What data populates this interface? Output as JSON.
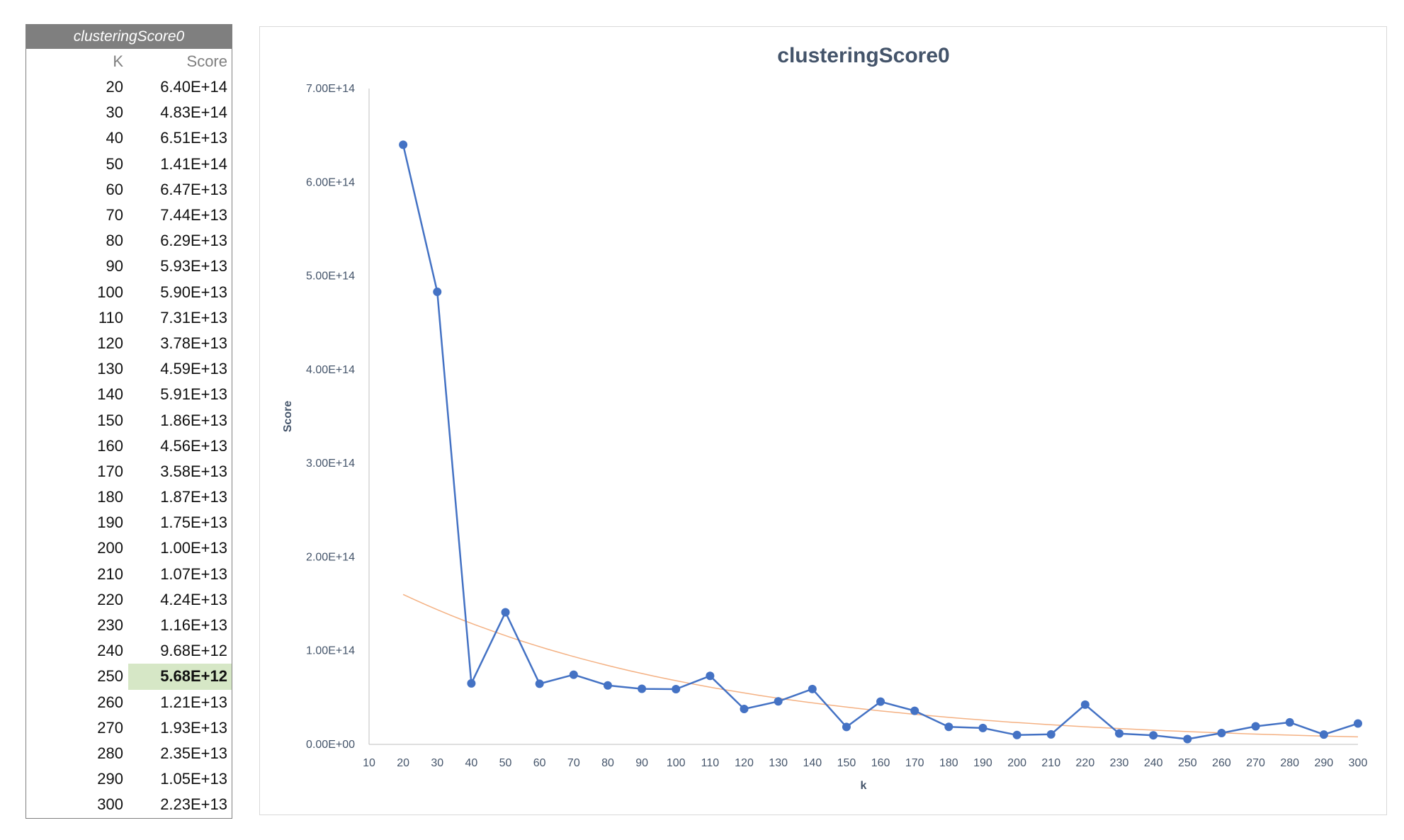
{
  "table": {
    "title": "clusteringScore0",
    "headers": [
      "K",
      "Score"
    ],
    "highlight_color": "#d6e7c6",
    "rows": [
      {
        "k": "20",
        "score": "6.40E+14"
      },
      {
        "k": "30",
        "score": "4.83E+14"
      },
      {
        "k": "40",
        "score": "6.51E+13"
      },
      {
        "k": "50",
        "score": "1.41E+14"
      },
      {
        "k": "60",
        "score": "6.47E+13"
      },
      {
        "k": "70",
        "score": "7.44E+13"
      },
      {
        "k": "80",
        "score": "6.29E+13"
      },
      {
        "k": "90",
        "score": "5.93E+13"
      },
      {
        "k": "100",
        "score": "5.90E+13"
      },
      {
        "k": "110",
        "score": "7.31E+13"
      },
      {
        "k": "120",
        "score": "3.78E+13"
      },
      {
        "k": "130",
        "score": "4.59E+13"
      },
      {
        "k": "140",
        "score": "5.91E+13"
      },
      {
        "k": "150",
        "score": "1.86E+13"
      },
      {
        "k": "160",
        "score": "4.56E+13"
      },
      {
        "k": "170",
        "score": "3.58E+13"
      },
      {
        "k": "180",
        "score": "1.87E+13"
      },
      {
        "k": "190",
        "score": "1.75E+13"
      },
      {
        "k": "200",
        "score": "1.00E+13"
      },
      {
        "k": "210",
        "score": "1.07E+13"
      },
      {
        "k": "220",
        "score": "4.24E+13"
      },
      {
        "k": "230",
        "score": "1.16E+13"
      },
      {
        "k": "240",
        "score": "9.68E+12"
      },
      {
        "k": "250",
        "score": "5.68E+12",
        "highlight": true
      },
      {
        "k": "260",
        "score": "1.21E+13"
      },
      {
        "k": "270",
        "score": "1.93E+13"
      },
      {
        "k": "280",
        "score": "2.35E+13"
      },
      {
        "k": "290",
        "score": "1.05E+13"
      },
      {
        "k": "300",
        "score": "2.23E+13"
      }
    ]
  },
  "chart_data": {
    "type": "line",
    "title": "clusteringScore0",
    "xlabel": "k",
    "ylabel": "Score",
    "xlim": [
      10,
      300
    ],
    "ylim": [
      0,
      700000000000000.0
    ],
    "x_ticks": [
      "10",
      "20",
      "30",
      "40",
      "50",
      "60",
      "70",
      "80",
      "90",
      "100",
      "110",
      "120",
      "130",
      "140",
      "150",
      "160",
      "170",
      "180",
      "190",
      "200",
      "210",
      "220",
      "230",
      "240",
      "250",
      "260",
      "270",
      "280",
      "290",
      "300"
    ],
    "y_ticks": [
      "0.00E+00",
      "1.00E+14",
      "2.00E+14",
      "3.00E+14",
      "4.00E+14",
      "5.00E+14",
      "6.00E+14",
      "7.00E+14"
    ],
    "grid": false,
    "legend": "none",
    "series": [
      {
        "color": "#4472c4",
        "x": [
          20,
          30,
          40,
          50,
          60,
          70,
          80,
          90,
          100,
          110,
          120,
          130,
          140,
          150,
          160,
          170,
          180,
          190,
          200,
          210,
          220,
          230,
          240,
          250,
          260,
          270,
          280,
          290,
          300
        ],
        "values": [
          640000000000000.0,
          483000000000000.0,
          65100000000000.0,
          141000000000000.0,
          64700000000000.0,
          74400000000000.0,
          62900000000000.0,
          59300000000000.0,
          59000000000000.0,
          73100000000000.0,
          37800000000000.0,
          45900000000000.0,
          59100000000000.0,
          18600000000000.0,
          45600000000000.0,
          35800000000000.0,
          18700000000000.0,
          17500000000000.0,
          10000000000000.0,
          10700000000000.0,
          42400000000000.0,
          11600000000000.0,
          9680000000000.0,
          5680000000000.0,
          12100000000000.0,
          19300000000000.0,
          23500000000000.0,
          10500000000000.0,
          22300000000000.0
        ]
      }
    ],
    "trendline": {
      "type": "exponential",
      "color": "#f4b183",
      "x": [
        20,
        300
      ],
      "values": [
        160000000000000.0,
        8000000000000.0
      ]
    }
  }
}
